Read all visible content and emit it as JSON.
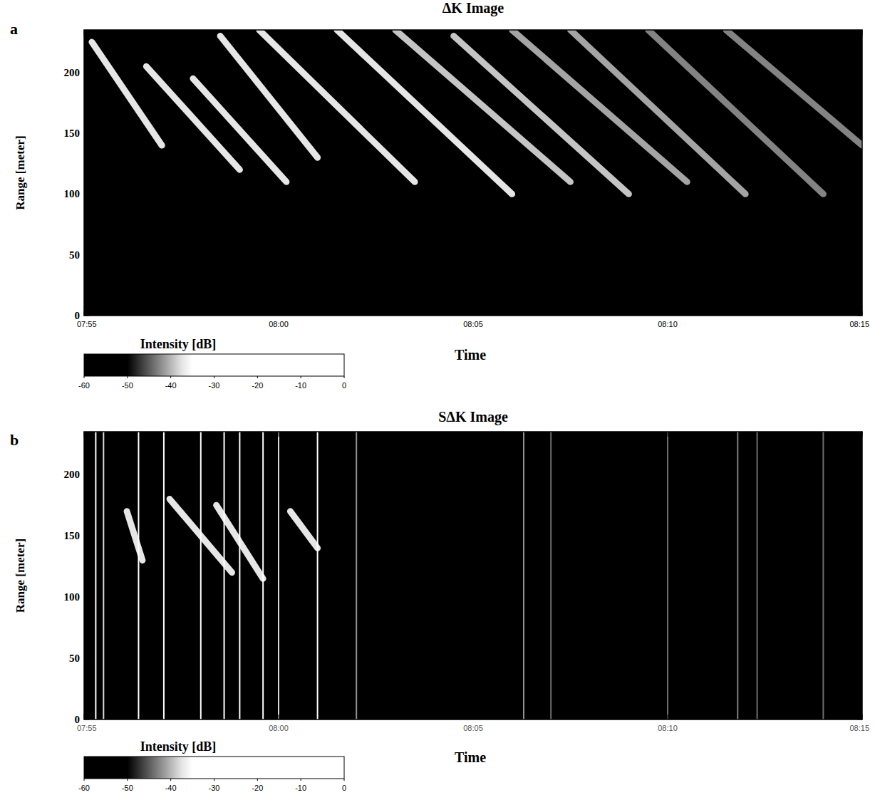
{
  "chart_data": [
    {
      "type": "heatmap",
      "panel_label": "a",
      "title": "ΔK Image",
      "x_label": "Time",
      "y_label": "Range [meter]",
      "xlim": [
        475,
        495
      ],
      "xticks": [
        {
          "value": 475,
          "label": "07:55"
        },
        {
          "value": 480,
          "label": "08:00"
        },
        {
          "value": 485,
          "label": "08:05"
        },
        {
          "value": 490,
          "label": "08:10"
        },
        {
          "value": 495,
          "label": "08:15"
        }
      ],
      "ylim": [
        0,
        235
      ],
      "yticks": [
        0,
        50,
        100,
        150,
        200
      ],
      "streaks": [
        {
          "t0": 475.2,
          "r0": 225,
          "t1": 477.0,
          "r1": 140,
          "intensity": -35
        },
        {
          "t0": 476.6,
          "r0": 205,
          "t1": 479.0,
          "r1": 120,
          "intensity": -20
        },
        {
          "t0": 477.8,
          "r0": 195,
          "t1": 480.2,
          "r1": 110,
          "intensity": -20
        },
        {
          "t0": 478.5,
          "r0": 230,
          "t1": 481.0,
          "r1": 130,
          "intensity": -35
        },
        {
          "t0": 479.5,
          "r0": 235,
          "t1": 483.5,
          "r1": 110,
          "intensity": -30
        },
        {
          "t0": 481.5,
          "r0": 235,
          "t1": 486.0,
          "r1": 100,
          "intensity": -35
        },
        {
          "t0": 483.0,
          "r0": 235,
          "t1": 487.5,
          "r1": 110,
          "intensity": -38
        },
        {
          "t0": 484.5,
          "r0": 230,
          "t1": 489.0,
          "r1": 100,
          "intensity": -38
        },
        {
          "t0": 486.0,
          "r0": 235,
          "t1": 490.5,
          "r1": 110,
          "intensity": -40
        },
        {
          "t0": 487.5,
          "r0": 235,
          "t1": 492.0,
          "r1": 100,
          "intensity": -40
        },
        {
          "t0": 489.5,
          "r0": 235,
          "t1": 494.0,
          "r1": 100,
          "intensity": -42
        },
        {
          "t0": 491.5,
          "r0": 235,
          "t1": 495.0,
          "r1": 140,
          "intensity": -42
        }
      ],
      "vertical_lines": [],
      "colorbar": {
        "label": "Intensity [dB]",
        "range": [
          -60,
          0
        ],
        "ticks": [
          -60,
          -50,
          -40,
          -30,
          -20,
          -10,
          0
        ]
      }
    },
    {
      "type": "heatmap",
      "panel_label": "b",
      "title": "SΔK Image",
      "x_label": "Time",
      "y_label": "Range [meter]",
      "xlim": [
        475,
        495
      ],
      "xticks": [
        {
          "value": 475,
          "label": "07:55"
        },
        {
          "value": 480,
          "label": "08:00"
        },
        {
          "value": 485,
          "label": "08:05"
        },
        {
          "value": 490,
          "label": "08:10"
        },
        {
          "value": 495,
          "label": "08:15"
        }
      ],
      "ylim": [
        0,
        235
      ],
      "yticks": [
        0,
        50,
        100,
        150,
        200
      ],
      "streaks": [
        {
          "t0": 476.1,
          "r0": 170,
          "t1": 476.5,
          "r1": 130,
          "intensity": -25
        },
        {
          "t0": 477.2,
          "r0": 180,
          "t1": 478.8,
          "r1": 120,
          "intensity": -20
        },
        {
          "t0": 478.4,
          "r0": 175,
          "t1": 479.6,
          "r1": 115,
          "intensity": -25
        },
        {
          "t0": 480.3,
          "r0": 170,
          "t1": 481.0,
          "r1": 140,
          "intensity": -30
        }
      ],
      "vertical_lines": [
        {
          "t": 475.3,
          "intensity": -35
        },
        {
          "t": 475.5,
          "intensity": -38
        },
        {
          "t": 476.4,
          "intensity": -35
        },
        {
          "t": 477.05,
          "intensity": 0
        },
        {
          "t": 478.0,
          "intensity": -30
        },
        {
          "t": 478.6,
          "intensity": -35
        },
        {
          "t": 479.0,
          "intensity": -35
        },
        {
          "t": 479.6,
          "intensity": -32
        },
        {
          "t": 480.0,
          "intensity": -38
        },
        {
          "t": 481.0,
          "intensity": -34
        },
        {
          "t": 482.0,
          "intensity": -42
        },
        {
          "t": 486.3,
          "intensity": -42
        },
        {
          "t": 487.0,
          "intensity": -44
        },
        {
          "t": 490.0,
          "intensity": -44
        },
        {
          "t": 491.8,
          "intensity": -43
        },
        {
          "t": 492.3,
          "intensity": -44
        },
        {
          "t": 494.0,
          "intensity": -44
        }
      ],
      "colorbar": {
        "label": "Intensity [dB]",
        "range": [
          -60,
          0
        ],
        "ticks": [
          -60,
          -50,
          -40,
          -30,
          -20,
          -10,
          0
        ]
      }
    }
  ]
}
